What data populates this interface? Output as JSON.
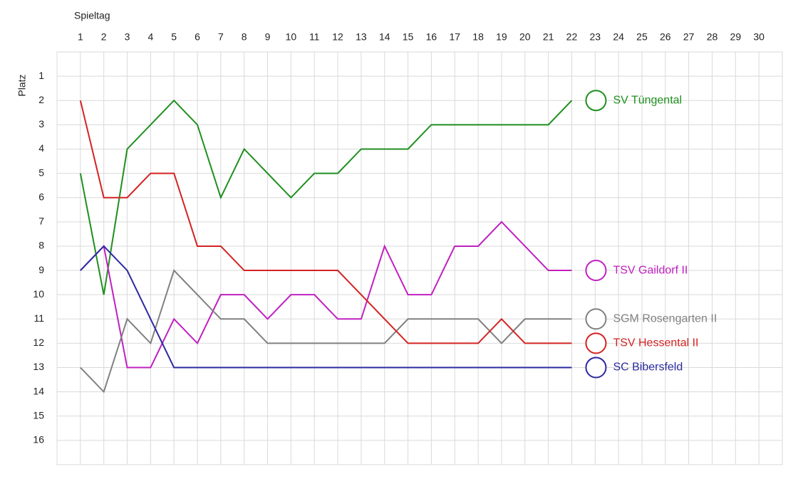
{
  "chart_data": {
    "type": "line",
    "x_label": "Spieltag",
    "y_label": "Platz",
    "x": [
      1,
      2,
      3,
      4,
      5,
      6,
      7,
      8,
      9,
      10,
      11,
      12,
      13,
      14,
      15,
      16,
      17,
      18,
      19,
      20,
      21,
      22
    ],
    "series": [
      {
        "name": "SV Tüngental",
        "color": "#1f8f1f",
        "values": [
          5,
          10,
          4,
          3,
          2,
          3,
          6,
          4,
          5,
          6,
          5,
          5,
          4,
          4,
          4,
          3,
          3,
          3,
          3,
          3,
          3,
          2
        ]
      },
      {
        "name": "TSV Gaildorf II",
        "color": "#c020c0",
        "values": [
          9,
          8,
          13,
          13,
          11,
          12,
          10,
          10,
          11,
          10,
          10,
          11,
          11,
          8,
          10,
          10,
          8,
          8,
          7,
          8,
          9,
          9
        ]
      },
      {
        "name": "SGM Rosengarten II",
        "color": "#808080",
        "values": [
          13,
          14,
          11,
          12,
          9,
          10,
          11,
          11,
          12,
          12,
          12,
          12,
          12,
          12,
          11,
          11,
          11,
          11,
          12,
          11,
          11,
          11
        ]
      },
      {
        "name": "TSV Hessental II",
        "color": "#d42222",
        "values": [
          2,
          6,
          6,
          5,
          5,
          8,
          8,
          9,
          9,
          9,
          9,
          9,
          10,
          11,
          12,
          12,
          12,
          12,
          11,
          12,
          12,
          12
        ]
      },
      {
        "name": "SC Bibersfeld",
        "color": "#2a2aa0",
        "values": [
          9,
          8,
          9,
          11,
          13,
          13,
          13,
          13,
          13,
          13,
          13,
          13,
          13,
          13,
          13,
          13,
          13,
          13,
          13,
          13,
          13,
          13
        ]
      }
    ],
    "xlim": [
      0,
      31
    ],
    "ylim": [
      17,
      0
    ],
    "xticks": [
      1,
      2,
      3,
      4,
      5,
      6,
      7,
      8,
      9,
      10,
      11,
      12,
      13,
      14,
      15,
      16,
      17,
      18,
      19,
      20,
      21,
      22,
      23,
      24,
      25,
      26,
      27,
      28,
      29,
      30
    ],
    "yticks": [
      1,
      2,
      3,
      4,
      5,
      6,
      7,
      8,
      9,
      10,
      11,
      12,
      13,
      14,
      15,
      16
    ],
    "grid": true
  }
}
